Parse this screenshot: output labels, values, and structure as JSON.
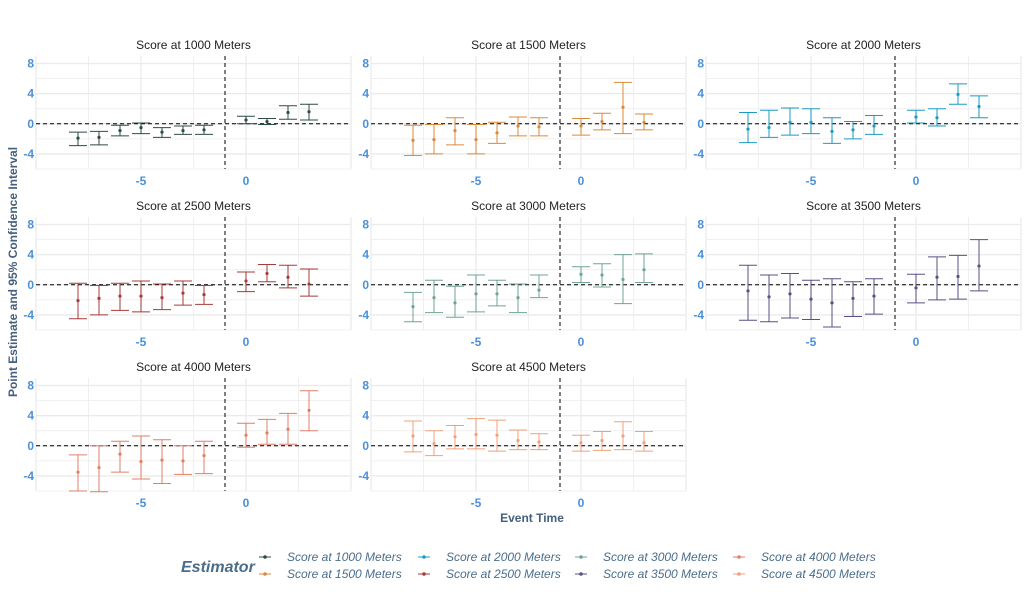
{
  "chart_data": {
    "type": "scatter",
    "subtype": "event-study point estimates with 95% confidence interval error bars, faceted",
    "ylabel": "Point Estimate and 95% Confidence Interval",
    "xlabel": "Event Time",
    "yticks": [
      -4,
      0,
      4,
      8
    ],
    "xticks": [
      -5,
      0
    ],
    "ylim": [
      -6,
      9
    ],
    "xlim": [
      -10,
      5
    ],
    "reference_lines": {
      "horizontal_y": 0,
      "vertical_x": -1,
      "style": "dashed"
    },
    "legend": {
      "title": "Estimator",
      "placement": "bottom"
    },
    "colors": {
      "axis_text": "#4a90d9",
      "axis_title": "#44607e",
      "legend_text": "#4a6d8c",
      "grid": "#ebebeb"
    },
    "panels": [
      {
        "title": "Score at 1000 Meters",
        "color": "#2f4b47",
        "points": [
          {
            "x": -8,
            "y": -1.9,
            "lo": -2.9,
            "hi": -1.1
          },
          {
            "x": -7,
            "y": -1.8,
            "lo": -2.8,
            "hi": -1.0
          },
          {
            "x": -6,
            "y": -0.9,
            "lo": -1.6,
            "hi": -0.2
          },
          {
            "x": -5,
            "y": -0.5,
            "lo": -1.3,
            "hi": 0.1
          },
          {
            "x": -4,
            "y": -1.1,
            "lo": -1.8,
            "hi": -0.5
          },
          {
            "x": -3,
            "y": -0.9,
            "lo": -1.4,
            "hi": -0.3
          },
          {
            "x": -2,
            "y": -0.8,
            "lo": -1.4,
            "hi": -0.2
          },
          {
            "x": 0,
            "y": 0.5,
            "lo": 0.0,
            "hi": 1.0
          },
          {
            "x": 1,
            "y": 0.3,
            "lo": -0.1,
            "hi": 0.7
          },
          {
            "x": 2,
            "y": 1.5,
            "lo": 0.6,
            "hi": 2.4
          },
          {
            "x": 3,
            "y": 1.6,
            "lo": 0.5,
            "hi": 2.6
          }
        ]
      },
      {
        "title": "Score at 1500 Meters",
        "color": "#d98b3a",
        "points": [
          {
            "x": -8,
            "y": -2.2,
            "lo": -4.2,
            "hi": -0.2
          },
          {
            "x": -7,
            "y": -2.1,
            "lo": -4.0,
            "hi": -0.1
          },
          {
            "x": -6,
            "y": -0.9,
            "lo": -2.8,
            "hi": 0.8
          },
          {
            "x": -5,
            "y": -2.1,
            "lo": -4.0,
            "hi": -0.1
          },
          {
            "x": -4,
            "y": -1.2,
            "lo": -2.6,
            "hi": 0.2
          },
          {
            "x": -3,
            "y": -0.3,
            "lo": -1.6,
            "hi": 0.9
          },
          {
            "x": -2,
            "y": -0.4,
            "lo": -1.6,
            "hi": 0.8
          },
          {
            "x": 0,
            "y": -0.3,
            "lo": -1.5,
            "hi": 0.7
          },
          {
            "x": 1,
            "y": 0.3,
            "lo": -0.8,
            "hi": 1.4
          },
          {
            "x": 2,
            "y": 2.2,
            "lo": -1.3,
            "hi": 5.5
          },
          {
            "x": 3,
            "y": 0.2,
            "lo": -0.8,
            "hi": 1.3
          }
        ]
      },
      {
        "title": "Score at 2000 Meters",
        "color": "#1b9bbf",
        "points": [
          {
            "x": -8,
            "y": -0.7,
            "lo": -2.5,
            "hi": 1.5
          },
          {
            "x": -7,
            "y": -0.5,
            "lo": -1.8,
            "hi": 1.8
          },
          {
            "x": -6,
            "y": 0.2,
            "lo": -1.5,
            "hi": 2.1
          },
          {
            "x": -5,
            "y": 0.2,
            "lo": -1.3,
            "hi": 2.0
          },
          {
            "x": -4,
            "y": -1.0,
            "lo": -2.6,
            "hi": 0.8
          },
          {
            "x": -3,
            "y": -0.8,
            "lo": -2.0,
            "hi": 0.3
          },
          {
            "x": -2,
            "y": -0.3,
            "lo": -1.4,
            "hi": 1.1
          },
          {
            "x": 0,
            "y": 0.9,
            "lo": 0.1,
            "hi": 1.8
          },
          {
            "x": 1,
            "y": 0.8,
            "lo": -0.3,
            "hi": 2.0
          },
          {
            "x": 2,
            "y": 3.9,
            "lo": 2.6,
            "hi": 5.3
          },
          {
            "x": 3,
            "y": 2.3,
            "lo": 0.8,
            "hi": 3.7
          }
        ]
      },
      {
        "title": "Score at 2500 Meters",
        "color": "#a83a3a",
        "points": [
          {
            "x": -8,
            "y": -2.1,
            "lo": -4.5,
            "hi": 0.2
          },
          {
            "x": -7,
            "y": -1.8,
            "lo": -4.0,
            "hi": -0.1
          },
          {
            "x": -6,
            "y": -1.5,
            "lo": -3.4,
            "hi": 0.2
          },
          {
            "x": -5,
            "y": -1.5,
            "lo": -3.6,
            "hi": 0.5
          },
          {
            "x": -4,
            "y": -1.7,
            "lo": -3.3,
            "hi": 0.1
          },
          {
            "x": -3,
            "y": -1.1,
            "lo": -2.7,
            "hi": 0.5
          },
          {
            "x": -2,
            "y": -1.3,
            "lo": -2.6,
            "hi": -0.1
          },
          {
            "x": 0,
            "y": 0.5,
            "lo": -0.9,
            "hi": 1.7
          },
          {
            "x": 1,
            "y": 1.5,
            "lo": 0.4,
            "hi": 2.7
          },
          {
            "x": 2,
            "y": 1.0,
            "lo": -0.4,
            "hi": 2.6
          },
          {
            "x": 3,
            "y": 0.1,
            "lo": -1.5,
            "hi": 2.1
          }
        ]
      },
      {
        "title": "Score at 3000 Meters",
        "color": "#6fa58f",
        "points": [
          {
            "x": -8,
            "y": -2.9,
            "lo": -4.9,
            "hi": -1.0
          },
          {
            "x": -7,
            "y": -1.7,
            "lo": -3.7,
            "hi": 0.6
          },
          {
            "x": -6,
            "y": -2.4,
            "lo": -4.3,
            "hi": -0.2
          },
          {
            "x": -5,
            "y": -1.2,
            "lo": -3.6,
            "hi": 1.3
          },
          {
            "x": -4,
            "y": -1.2,
            "lo": -2.8,
            "hi": 0.6
          },
          {
            "x": -3,
            "y": -1.7,
            "lo": -3.7,
            "hi": 0.1
          },
          {
            "x": -2,
            "y": -0.7,
            "lo": -1.7,
            "hi": 1.3
          },
          {
            "x": 0,
            "y": 1.4,
            "lo": 0.3,
            "hi": 2.4
          },
          {
            "x": 1,
            "y": 1.3,
            "lo": -0.3,
            "hi": 2.8
          },
          {
            "x": 2,
            "y": 0.7,
            "lo": -2.5,
            "hi": 4.0
          },
          {
            "x": 3,
            "y": 2.0,
            "lo": 0.3,
            "hi": 4.1
          }
        ]
      },
      {
        "title": "Score at 3500 Meters",
        "color": "#5d4f85",
        "points": [
          {
            "x": -8,
            "y": -0.8,
            "lo": -4.7,
            "hi": 2.6
          },
          {
            "x": -7,
            "y": -1.6,
            "lo": -4.9,
            "hi": 1.3
          },
          {
            "x": -6,
            "y": -1.2,
            "lo": -4.4,
            "hi": 1.5
          },
          {
            "x": -5,
            "y": -1.9,
            "lo": -4.6,
            "hi": 0.6
          },
          {
            "x": -4,
            "y": -2.4,
            "lo": -5.6,
            "hi": 0.8
          },
          {
            "x": -3,
            "y": -1.8,
            "lo": -4.2,
            "hi": 0.4
          },
          {
            "x": -2,
            "y": -1.5,
            "lo": -3.9,
            "hi": 0.8
          },
          {
            "x": 0,
            "y": -0.4,
            "lo": -2.4,
            "hi": 1.4
          },
          {
            "x": 1,
            "y": 1.0,
            "lo": -2.0,
            "hi": 3.7
          },
          {
            "x": 2,
            "y": 1.1,
            "lo": -1.9,
            "hi": 3.9
          },
          {
            "x": 3,
            "y": 2.5,
            "lo": -0.8,
            "hi": 6.0
          }
        ]
      },
      {
        "title": "Score at 4000 Meters",
        "color": "#e07f6a",
        "points": [
          {
            "x": -8,
            "y": -3.5,
            "lo": -6.0,
            "hi": -1.2
          },
          {
            "x": -7,
            "y": -2.9,
            "lo": -6.1,
            "hi": 0.0
          },
          {
            "x": -6,
            "y": -1.1,
            "lo": -3.5,
            "hi": 0.6
          },
          {
            "x": -5,
            "y": -2.1,
            "lo": -4.4,
            "hi": 1.3
          },
          {
            "x": -4,
            "y": -1.9,
            "lo": -5.0,
            "hi": 0.8
          },
          {
            "x": -3,
            "y": -2.0,
            "lo": -3.8,
            "hi": 0.0
          },
          {
            "x": -2,
            "y": -1.3,
            "lo": -3.7,
            "hi": 0.6
          },
          {
            "x": 0,
            "y": 1.4,
            "lo": -0.2,
            "hi": 3.0
          },
          {
            "x": 1,
            "y": 1.7,
            "lo": 0.2,
            "hi": 3.5
          },
          {
            "x": 2,
            "y": 2.2,
            "lo": 0.2,
            "hi": 4.3
          },
          {
            "x": 3,
            "y": 4.7,
            "lo": 2.0,
            "hi": 7.3
          }
        ]
      },
      {
        "title": "Score at 4500 Meters",
        "color": "#f0a07a",
        "points": [
          {
            "x": -8,
            "y": 1.3,
            "lo": -0.8,
            "hi": 3.3
          },
          {
            "x": -7,
            "y": 0.3,
            "lo": -1.3,
            "hi": 2.0
          },
          {
            "x": -6,
            "y": 1.2,
            "lo": -0.4,
            "hi": 2.7
          },
          {
            "x": -5,
            "y": 1.5,
            "lo": -0.4,
            "hi": 3.6
          },
          {
            "x": -4,
            "y": 1.4,
            "lo": -0.7,
            "hi": 3.4
          },
          {
            "x": -3,
            "y": 0.7,
            "lo": -0.5,
            "hi": 2.1
          },
          {
            "x": -2,
            "y": 0.5,
            "lo": -0.5,
            "hi": 1.6
          },
          {
            "x": 0,
            "y": 0.4,
            "lo": -0.7,
            "hi": 1.4
          },
          {
            "x": 1,
            "y": 0.7,
            "lo": -0.6,
            "hi": 1.9
          },
          {
            "x": 2,
            "y": 1.3,
            "lo": -0.5,
            "hi": 3.2
          },
          {
            "x": 3,
            "y": 0.4,
            "lo": -0.7,
            "hi": 1.9
          }
        ]
      }
    ]
  }
}
